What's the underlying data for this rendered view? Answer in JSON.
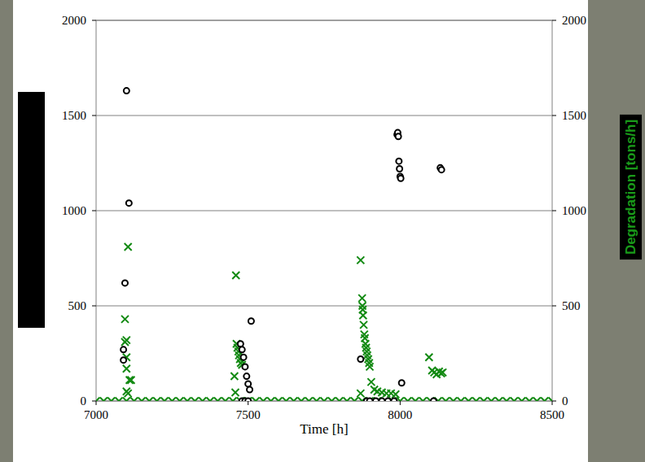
{
  "chart_data": {
    "type": "scatter",
    "x_label": "Time [h]",
    "y2_label": "Degradation [tons/h]",
    "xlim": [
      7000,
      8500
    ],
    "xticks": [
      7000,
      7500,
      8000,
      8500
    ],
    "ylim": [
      0,
      2000
    ],
    "yticks": [
      0,
      500,
      1000,
      1500,
      2000
    ],
    "y2lim": [
      0,
      2000
    ],
    "y2ticks": [
      0,
      500,
      1000,
      1500,
      2000
    ],
    "grid": true,
    "series": [
      {
        "color": "#138a13",
        "marker": "x",
        "axis": "y2",
        "x": [
          7095,
          7095,
          7100,
          7105,
          7100,
          7100,
          7110,
          7115,
          7100,
          7105,
          7460,
          7455,
          7458,
          7462,
          7465,
          7468,
          7470,
          7473,
          7476,
          7480,
          7870,
          7875,
          7876,
          7877,
          7878,
          7880,
          7882,
          7884,
          7886,
          7888,
          7890,
          7892,
          7895,
          7898,
          7900,
          7870,
          7905,
          7915,
          7925,
          7940,
          7955,
          7970,
          7985,
          8095,
          8105,
          8112,
          8120,
          8128,
          8135,
          8140,
          7000,
          7025,
          7050,
          7075,
          7100,
          7125,
          7150,
          7175,
          7200,
          7225,
          7250,
          7275,
          7300,
          7325,
          7350,
          7375,
          7400,
          7425,
          7450,
          7475,
          7500,
          7525,
          7550,
          7575,
          7600,
          7625,
          7650,
          7675,
          7700,
          7725,
          7750,
          7775,
          7800,
          7825,
          7850,
          7875,
          7900,
          7925,
          7950,
          7975,
          8000,
          8025,
          8050,
          8075,
          8100,
          8125,
          8150,
          8175,
          8200,
          8225,
          8250,
          8275,
          8300,
          8325,
          8350,
          8375,
          8400,
          8425,
          8450,
          8475,
          8500
        ],
        "values": [
          430,
          310,
          320,
          810,
          230,
          170,
          110,
          110,
          50,
          40,
          660,
          130,
          45,
          300,
          280,
          260,
          240,
          220,
          200,
          190,
          740,
          540,
          500,
          480,
          450,
          400,
          350,
          330,
          300,
          280,
          260,
          240,
          220,
          200,
          180,
          40,
          100,
          60,
          50,
          45,
          40,
          40,
          35,
          230,
          160,
          150,
          140,
          155,
          145,
          150,
          0,
          0,
          0,
          0,
          0,
          0,
          0,
          0,
          0,
          0,
          0,
          0,
          0,
          0,
          0,
          0,
          0,
          0,
          0,
          0,
          0,
          0,
          0,
          0,
          0,
          0,
          0,
          0,
          0,
          0,
          0,
          0,
          0,
          0,
          0,
          0,
          0,
          0,
          0,
          0,
          0,
          0,
          0,
          0,
          0,
          0,
          0,
          0,
          0,
          0,
          0,
          0,
          0,
          0,
          0,
          0,
          0,
          0,
          0,
          0,
          0
        ]
      },
      {
        "color": "#000000",
        "marker": "circle",
        "axis": "y",
        "x": [
          7090,
          7090,
          7095,
          7100,
          7108,
          7475,
          7480,
          7485,
          7490,
          7495,
          7500,
          7505,
          7510,
          7870,
          7990,
          7992,
          7994,
          7996,
          7998,
          8000,
          8002,
          8005,
          8132,
          8136,
          7480,
          7490,
          7500,
          7890,
          7900,
          7920,
          7940,
          7960,
          7980,
          8110
        ],
        "values": [
          270,
          215,
          620,
          1630,
          1040,
          300,
          270,
          230,
          180,
          130,
          90,
          60,
          420,
          220,
          1400,
          1410,
          1390,
          1260,
          1220,
          1180,
          1170,
          95,
          1225,
          1215,
          0,
          0,
          0,
          0,
          0,
          0,
          0,
          0,
          0,
          0
        ]
      }
    ]
  }
}
